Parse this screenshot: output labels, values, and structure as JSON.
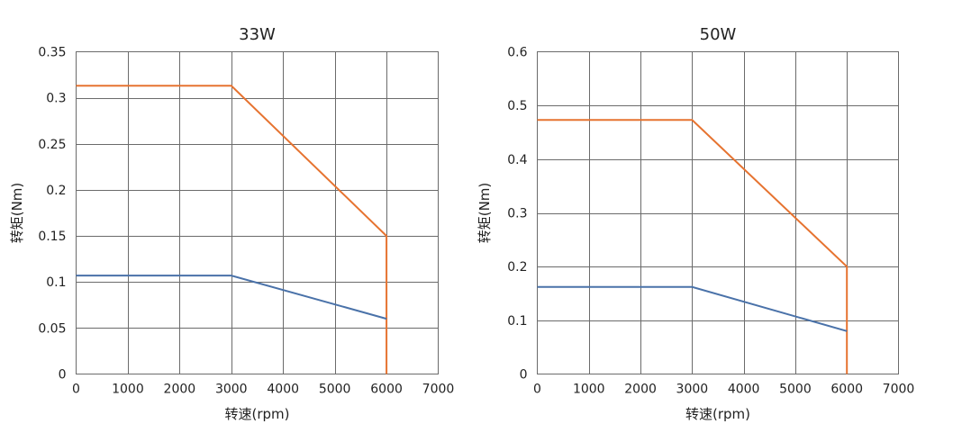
{
  "chart_data": [
    {
      "type": "line",
      "title": "33W",
      "xlabel": "转速(rpm)",
      "ylabel": "转矩(Nm)",
      "xlim": [
        0,
        7000
      ],
      "ylim": [
        0,
        0.35
      ],
      "x_ticks": [
        0,
        1000,
        2000,
        3000,
        4000,
        5000,
        6000,
        7000
      ],
      "x_tick_labels": [
        "0",
        "1000",
        "2000",
        "3000",
        "4000",
        "5000",
        "6000",
        "7000"
      ],
      "y_ticks": [
        0,
        0.05,
        0.1,
        0.15,
        0.2,
        0.25,
        0.3,
        0.35
      ],
      "y_tick_labels": [
        "0",
        "0.05",
        "0.1",
        "0.15",
        "0.2",
        "0.25",
        "0.3",
        "0.35"
      ],
      "grid": true,
      "series": [
        {
          "name": "orange-curve",
          "color": "#E67330",
          "x": [
            0,
            3000,
            6000,
            6000
          ],
          "y": [
            0.313,
            0.313,
            0.15,
            0
          ]
        },
        {
          "name": "blue-curve",
          "color": "#4A72A9",
          "x": [
            0,
            3000,
            6000
          ],
          "y": [
            0.107,
            0.107,
            0.06
          ]
        }
      ]
    },
    {
      "type": "line",
      "title": "50W",
      "xlabel": "转速(rpm)",
      "ylabel": "转矩(Nm)",
      "xlim": [
        0,
        7000
      ],
      "ylim": [
        0,
        0.6
      ],
      "x_ticks": [
        0,
        1000,
        2000,
        3000,
        4000,
        5000,
        6000,
        7000
      ],
      "x_tick_labels": [
        "0",
        "1000",
        "2000",
        "3000",
        "4000",
        "5000",
        "6000",
        "7000"
      ],
      "y_ticks": [
        0,
        0.1,
        0.2,
        0.3,
        0.4,
        0.5,
        0.6
      ],
      "y_tick_labels": [
        "0",
        "0.1",
        "0.2",
        "0.3",
        "0.4",
        "0.5",
        "0.6"
      ],
      "grid": true,
      "series": [
        {
          "name": "orange-curve",
          "color": "#E67330",
          "x": [
            0,
            3000,
            6000,
            6000
          ],
          "y": [
            0.473,
            0.473,
            0.2,
            0
          ]
        },
        {
          "name": "blue-curve",
          "color": "#4A72A9",
          "x": [
            0,
            3000,
            6000
          ],
          "y": [
            0.162,
            0.162,
            0.08
          ]
        }
      ]
    }
  ]
}
